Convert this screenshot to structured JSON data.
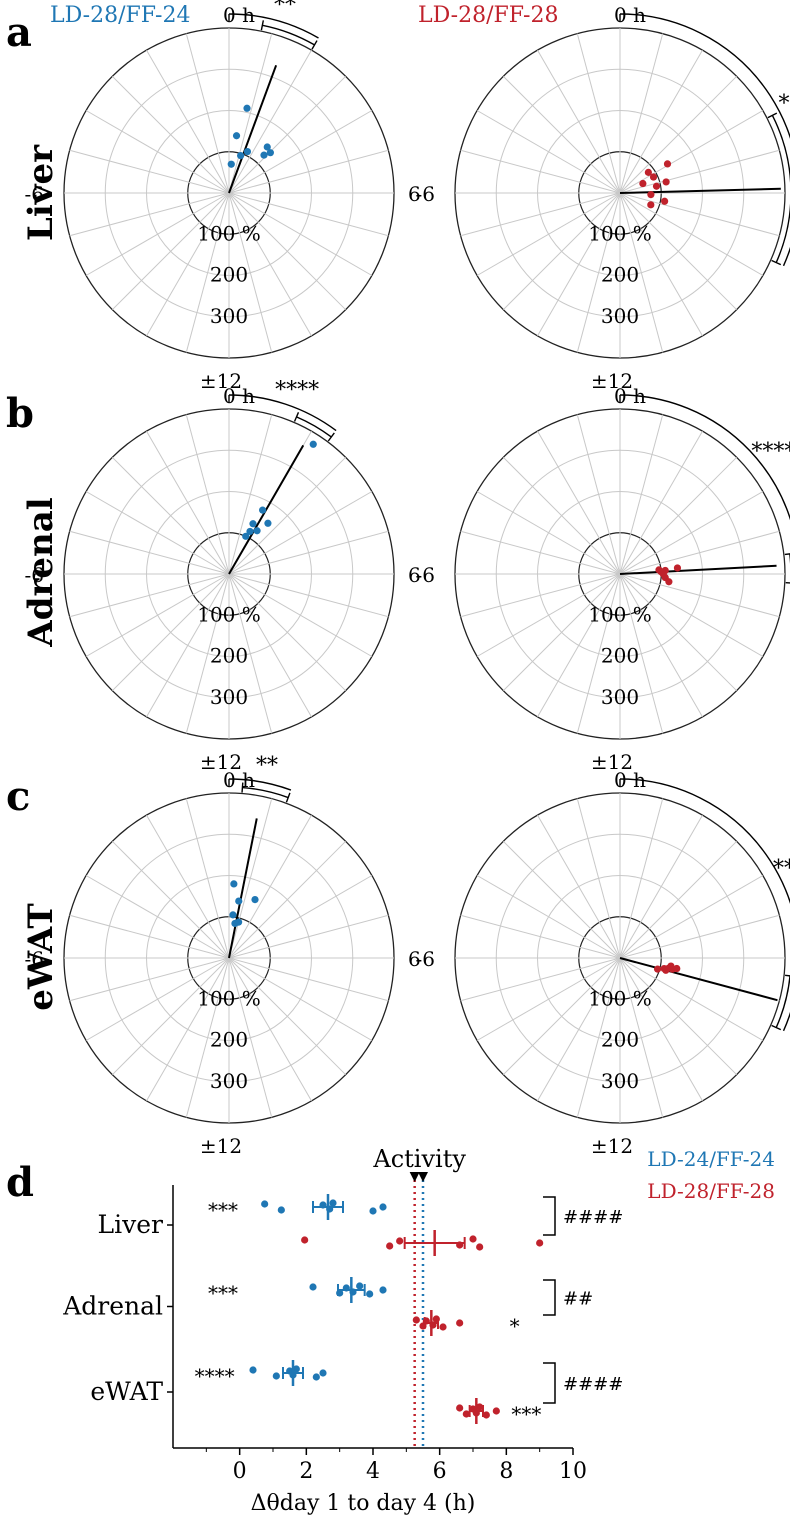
{
  "colors": {
    "blue": "#1f77b4",
    "red": "#c0222c",
    "grid": "#c8c8c8",
    "ink": "#000000"
  },
  "panel_letters": [
    "a",
    "b",
    "c",
    "d"
  ],
  "tissues": [
    "Liver",
    "Adrenal",
    "eWAT"
  ],
  "group_titles": [
    "LD-28/FF-24",
    "LD-28/FF-28"
  ],
  "polar_labels": {
    "top": "0 h",
    "left": "-6",
    "right": "6",
    "bottom": "±12",
    "radii": [
      "100 %",
      "200",
      "300"
    ]
  },
  "chart_data": [
    {
      "type": "scatter",
      "projection": "polar",
      "panel": "a",
      "tissue": "Liver",
      "group": "LD-28/FF-24",
      "series_color": "blue",
      "significance": "**",
      "mean": {
        "phase_h": 1.35,
        "amplitude_pct": 330
      },
      "ci_h": [
        0.75,
        2.0
      ],
      "points": [
        {
          "phase_h": 0.3,
          "amplitude_pct": 70
        },
        {
          "phase_h": 1.15,
          "amplitude_pct": 95
        },
        {
          "phase_h": 1.6,
          "amplitude_pct": 110
        },
        {
          "phase_h": 0.5,
          "amplitude_pct": 140
        },
        {
          "phase_h": 0.8,
          "amplitude_pct": 210
        },
        {
          "phase_h": 2.65,
          "amplitude_pct": 145
        },
        {
          "phase_h": 2.85,
          "amplitude_pct": 125
        },
        {
          "phase_h": 3.05,
          "amplitude_pct": 140
        }
      ]
    },
    {
      "type": "scatter",
      "projection": "polar",
      "panel": "a",
      "tissue": "Liver",
      "group": "LD-28/FF-28",
      "series_color": "red",
      "significance": "***",
      "mean": {
        "phase_h": 5.9,
        "amplitude_pct": 390
      },
      "ci_h": [
        4.2,
        7.6
      ],
      "points": [
        {
          "phase_h": 4.5,
          "amplitude_pct": 60
        },
        {
          "phase_h": 4.3,
          "amplitude_pct": 90
        },
        {
          "phase_h": 3.6,
          "amplitude_pct": 85
        },
        {
          "phase_h": 5.3,
          "amplitude_pct": 90
        },
        {
          "phase_h": 5.1,
          "amplitude_pct": 115
        },
        {
          "phase_h": 6.2,
          "amplitude_pct": 75
        },
        {
          "phase_h": 6.7,
          "amplitude_pct": 110
        },
        {
          "phase_h": 7.4,
          "amplitude_pct": 80
        },
        {
          "phase_h": 3.9,
          "amplitude_pct": 135
        }
      ]
    },
    {
      "type": "scatter",
      "projection": "polar",
      "panel": "b",
      "tissue": "Adrenal",
      "group": "LD-28/FF-24",
      "series_color": "blue",
      "significance": "****",
      "mean": {
        "phase_h": 2.0,
        "amplitude_pct": 360
      },
      "ci_h": [
        1.55,
        2.45
      ],
      "points": [
        {
          "phase_h": 1.6,
          "amplitude_pct": 100
        },
        {
          "phase_h": 1.75,
          "amplitude_pct": 115
        },
        {
          "phase_h": 1.7,
          "amplitude_pct": 135
        },
        {
          "phase_h": 2.2,
          "amplitude_pct": 125
        },
        {
          "phase_h": 2.5,
          "amplitude_pct": 155
        },
        {
          "phase_h": 1.85,
          "amplitude_pct": 175
        },
        {
          "phase_h": 2.2,
          "amplitude_pct": 375
        }
      ]
    },
    {
      "type": "scatter",
      "projection": "polar",
      "panel": "b",
      "tissue": "Adrenal",
      "group": "LD-28/FF-28",
      "series_color": "red",
      "significance": "****",
      "mean": {
        "phase_h": 5.8,
        "amplitude_pct": 380
      },
      "ci_h": [
        5.55,
        6.2
      ],
      "points": [
        {
          "phase_h": 5.6,
          "amplitude_pct": 95
        },
        {
          "phase_h": 5.8,
          "amplitude_pct": 100
        },
        {
          "phase_h": 6.0,
          "amplitude_pct": 105
        },
        {
          "phase_h": 5.7,
          "amplitude_pct": 110
        },
        {
          "phase_h": 5.6,
          "amplitude_pct": 140
        },
        {
          "phase_h": 6.3,
          "amplitude_pct": 110
        },
        {
          "phase_h": 6.6,
          "amplitude_pct": 120
        }
      ]
    },
    {
      "type": "scatter",
      "projection": "polar",
      "panel": "c",
      "tissue": "eWAT",
      "group": "LD-28/FF-24",
      "series_color": "blue",
      "significance": "**",
      "mean": {
        "phase_h": 0.75,
        "amplitude_pct": 345
      },
      "ci_h": [
        0.3,
        1.35
      ],
      "points": [
        {
          "phase_h": 0.65,
          "amplitude_pct": 85
        },
        {
          "phase_h": 1.0,
          "amplitude_pct": 90
        },
        {
          "phase_h": 0.35,
          "amplitude_pct": 105
        },
        {
          "phase_h": 0.65,
          "amplitude_pct": 140
        },
        {
          "phase_h": 1.6,
          "amplitude_pct": 155
        },
        {
          "phase_h": 0.25,
          "amplitude_pct": 180
        }
      ]
    },
    {
      "type": "scatter",
      "projection": "polar",
      "panel": "c",
      "tissue": "eWAT",
      "group": "LD-28/FF-28",
      "series_color": "red",
      "significance": "****",
      "mean": {
        "phase_h": 7.0,
        "amplitude_pct": 395
      },
      "ci_h": [
        6.4,
        7.6
      ],
      "points": [
        {
          "phase_h": 7.1,
          "amplitude_pct": 95
        },
        {
          "phase_h": 6.9,
          "amplitude_pct": 110
        },
        {
          "phase_h": 7.0,
          "amplitude_pct": 115
        },
        {
          "phase_h": 6.8,
          "amplitude_pct": 120
        },
        {
          "phase_h": 6.6,
          "amplitude_pct": 125
        },
        {
          "phase_h": 6.8,
          "amplitude_pct": 130
        },
        {
          "phase_h": 6.7,
          "amplitude_pct": 140
        }
      ]
    },
    {
      "type": "scatter",
      "panel": "d",
      "xlabel": "Δθday 1 to day 4 (h)",
      "xlim": [
        -2,
        10
      ],
      "xticks": [
        0,
        2,
        4,
        6,
        8,
        10
      ],
      "categories": [
        "Liver",
        "Adrenal",
        "eWAT"
      ],
      "legend": [
        "LD-24/FF-24",
        "LD-28/FF-28"
      ],
      "legend_position": "top-right",
      "activity": {
        "label": "Activity",
        "lines_x": [
          5.25,
          5.5
        ]
      },
      "series": [
        {
          "name": "LD-24/FF-24",
          "color": "blue",
          "groups": [
            {
              "category": "Liver",
              "mean": 2.65,
              "sem": 0.45,
              "sig": "***",
              "sig_x": -0.5,
              "points": [
                0.75,
                1.25,
                2.5,
                2.7,
                2.8,
                4.0,
                4.3
              ]
            },
            {
              "category": "Adrenal",
              "mean": 3.35,
              "sem": 0.4,
              "sig": "***",
              "sig_x": -0.5,
              "points": [
                2.2,
                3.0,
                3.2,
                3.4,
                3.6,
                3.9,
                4.3
              ]
            },
            {
              "category": "eWAT",
              "mean": 1.6,
              "sem": 0.3,
              "sig": "****",
              "sig_x": -0.75,
              "points": [
                0.4,
                1.1,
                1.5,
                1.6,
                1.7,
                2.3,
                2.5
              ]
            }
          ]
        },
        {
          "name": "LD-28/FF-28",
          "color": "red",
          "groups": [
            {
              "category": "Liver",
              "mean": 5.85,
              "sem": 0.9,
              "sig": "",
              "points": [
                1.95,
                4.5,
                4.8,
                6.6,
                7.0,
                7.2,
                9.0
              ]
            },
            {
              "category": "Adrenal",
              "mean": 5.75,
              "sem": 0.2,
              "sig": "*",
              "sig_x": 8.25,
              "points": [
                5.3,
                5.5,
                5.6,
                5.8,
                5.9,
                6.1,
                6.6
              ]
            },
            {
              "category": "eWAT",
              "mean": 7.1,
              "sem": 0.2,
              "sig": "***",
              "sig_x": 8.6,
              "points": [
                6.6,
                6.8,
                7.0,
                7.1,
                7.2,
                7.4,
                7.7
              ]
            }
          ]
        }
      ],
      "between_group_sig": [
        "####",
        "##",
        "####"
      ]
    }
  ]
}
